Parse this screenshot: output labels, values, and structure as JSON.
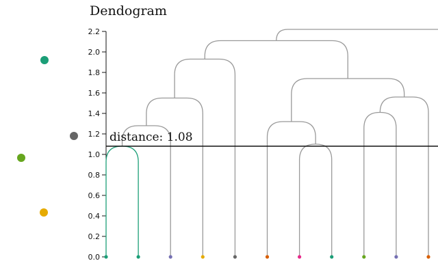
{
  "chart_data": {
    "type": "dendrogram",
    "title": "Dendogram",
    "y_ticks": [
      "0.0",
      "0.2",
      "0.4",
      "0.6",
      "0.8",
      "1.0",
      "1.2",
      "1.4",
      "1.6",
      "1.8",
      "2.0",
      "2.2"
    ],
    "ylim": [
      0,
      2.2
    ],
    "threshold": {
      "value": 1.08,
      "label": "distance: 1.08"
    },
    "leaves": [
      {
        "color": "#1b9e77"
      },
      {
        "color": "#1b9e77"
      },
      {
        "color": "#7570b3"
      },
      {
        "color": "#e6ab02"
      },
      {
        "color": "#666666"
      },
      {
        "color": "#d95f02"
      },
      {
        "color": "#e7298a"
      },
      {
        "color": "#1b9e77"
      },
      {
        "color": "#66a61e"
      },
      {
        "color": "#7570b3"
      },
      {
        "color": "#d95f02"
      }
    ],
    "merges": [
      {
        "left": "L0",
        "right": "L1",
        "height": 1.08,
        "color": "#1b9e77"
      },
      {
        "left": "m0",
        "right": "L2",
        "height": 1.28,
        "color": "#999999"
      },
      {
        "left": "m1",
        "right": "L3",
        "height": 1.55,
        "color": "#999999"
      },
      {
        "left": "m2",
        "right": "L4",
        "height": 1.93,
        "color": "#999999"
      },
      {
        "left": "L6",
        "right": "L7",
        "height": 1.1,
        "color": "#999999"
      },
      {
        "left": "L5",
        "right": "m4",
        "height": 1.32,
        "color": "#999999"
      },
      {
        "left": "L8",
        "right": "L9",
        "height": 1.41,
        "color": "#999999"
      },
      {
        "left": "m6",
        "right": "L10",
        "height": 1.56,
        "color": "#999999"
      },
      {
        "left": "m5",
        "right": "m7",
        "height": 1.74,
        "color": "#999999"
      },
      {
        "left": "m3",
        "right": "m8",
        "height": 2.11,
        "color": "#999999"
      },
      {
        "left": "m9",
        "right": "offscreen",
        "height": 2.22,
        "color": "#999999"
      }
    ],
    "side_legend": [
      {
        "color": "#1b9e77"
      },
      {
        "color": "#666666"
      },
      {
        "color": "#66a61e"
      },
      {
        "color": "#e6ab02"
      }
    ]
  }
}
